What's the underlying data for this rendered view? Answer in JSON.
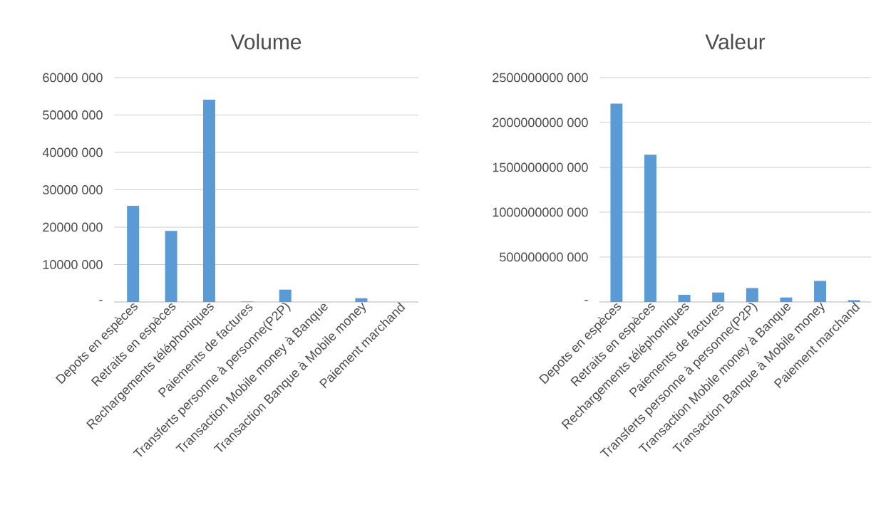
{
  "chart_data": [
    {
      "type": "bar",
      "title": "Volume",
      "categories": [
        "Depots en espèces",
        "Retraits en espèces",
        "Rechargements téléphoniques",
        "Paiements de factures",
        "Transferts personne à personne(P2P)",
        "Transaction Mobile money à Banque",
        "Transaction  Banque à Mobile money",
        "Paiement marchand"
      ],
      "values": [
        25700000,
        19000000,
        54100000,
        100000,
        3300000,
        0,
        1000000,
        null
      ],
      "color": "#5b9bd5",
      "ylim": [
        0,
        60000000
      ],
      "yticks": [
        {
          "value": 0,
          "label": "-"
        },
        {
          "value": 10000000,
          "label": "10000 000"
        },
        {
          "value": 20000000,
          "label": "20000 000"
        },
        {
          "value": 30000000,
          "label": "30000 000"
        },
        {
          "value": 40000000,
          "label": "40000 000"
        },
        {
          "value": 50000000,
          "label": "50000 000"
        },
        {
          "value": 60000000,
          "label": "60000 000"
        }
      ],
      "grid": "y"
    },
    {
      "type": "bar",
      "title": "Valeur",
      "categories": [
        "Depots en espèces",
        "Retraits en espèces",
        "Rechargements téléphoniques",
        "Paiements de factures",
        "Transferts personne à personne(P2P)",
        "Transaction Mobile money à Banque",
        "Transaction  Banque à Mobile money",
        "Paiement marchand"
      ],
      "values": [
        2210000000000,
        1640000000000,
        80000000000,
        105000000000,
        155000000000,
        50000000000,
        235000000000,
        20000000000
      ],
      "color": "#5b9bd5",
      "ylim": [
        0,
        2500000000000
      ],
      "yticks": [
        {
          "value": 0,
          "label": "-"
        },
        {
          "value": 500000000000,
          "label": "500000000 000"
        },
        {
          "value": 1000000000000,
          "label": "1000000000 000"
        },
        {
          "value": 1500000000000,
          "label": "1500000000 000"
        },
        {
          "value": 2000000000000,
          "label": "2000000000 000"
        },
        {
          "value": 2500000000000,
          "label": "2500000000 000"
        }
      ],
      "grid": "y"
    }
  ]
}
